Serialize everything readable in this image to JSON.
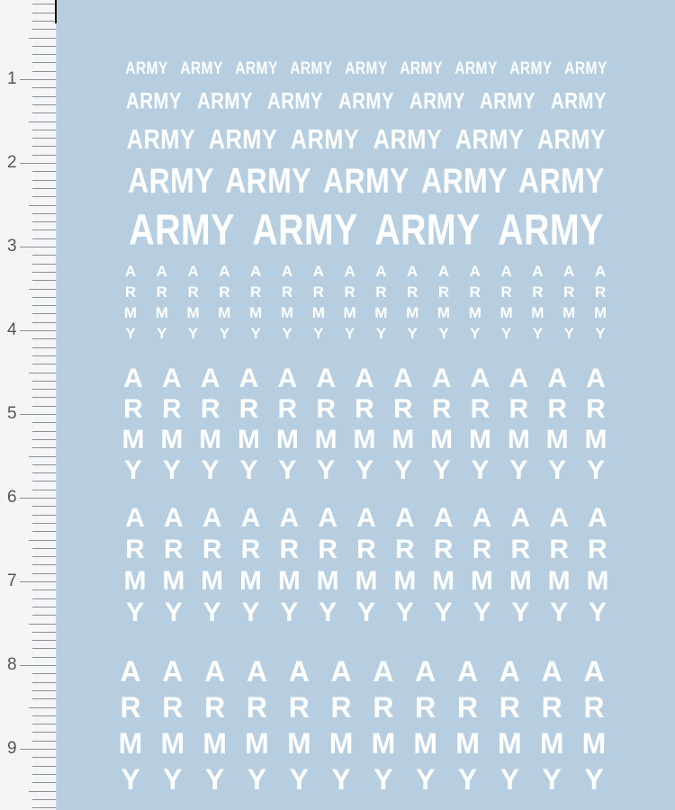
{
  "sheet": {
    "background_color": "#b6cee0",
    "decal_color": "#ffffff",
    "ruler": {
      "labels": [
        "1",
        "2",
        "3",
        "4",
        "5",
        "6",
        "7",
        "8",
        "9"
      ]
    },
    "horizontal_rows": [
      {
        "text": "ARMY",
        "count": 9
      },
      {
        "text": "ARMY",
        "count": 7
      },
      {
        "text": "ARMY",
        "count": 6
      },
      {
        "text": "ARMY",
        "count": 5
      },
      {
        "text": "ARMY",
        "count": 4
      }
    ],
    "vertical_rows": [
      {
        "letters": [
          "A",
          "R",
          "M",
          "Y"
        ],
        "count": 16
      },
      {
        "letters": [
          "A",
          "R",
          "M",
          "Y"
        ],
        "count": 13
      },
      {
        "letters": [
          "A",
          "R",
          "M",
          "Y"
        ],
        "count": 13
      },
      {
        "letters": [
          "A",
          "R",
          "M",
          "Y"
        ],
        "count": 12
      }
    ]
  }
}
